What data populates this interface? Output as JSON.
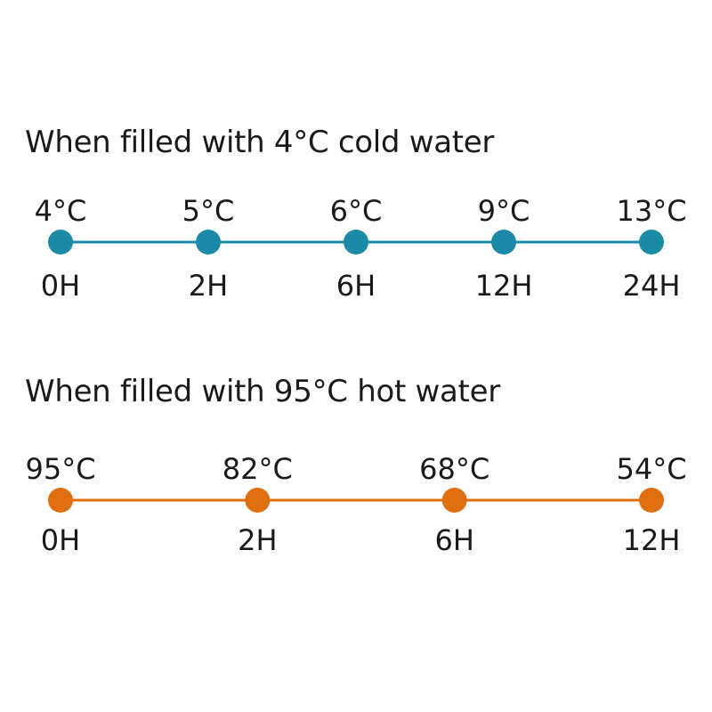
{
  "chart_data": [
    {
      "type": "line",
      "title": "When filled with 4°C cold water",
      "color": "#1a8aa8",
      "series": [
        {
          "x": [
            "0H",
            "2H",
            "6H",
            "12H",
            "24H"
          ],
          "values": [
            4,
            5,
            6,
            9,
            13
          ],
          "labels": [
            "4°C",
            "5°C",
            "6°C",
            "9°C",
            "13°C"
          ]
        }
      ]
    },
    {
      "type": "line",
      "title": "When filled with 95°C hot water",
      "color": "#e0700f",
      "series": [
        {
          "x": [
            "0H",
            "2H",
            "6H",
            "12H"
          ],
          "values": [
            95,
            82,
            68,
            54
          ],
          "labels": [
            "95°C",
            "82°C",
            "68°C",
            "54°C"
          ]
        }
      ]
    }
  ]
}
